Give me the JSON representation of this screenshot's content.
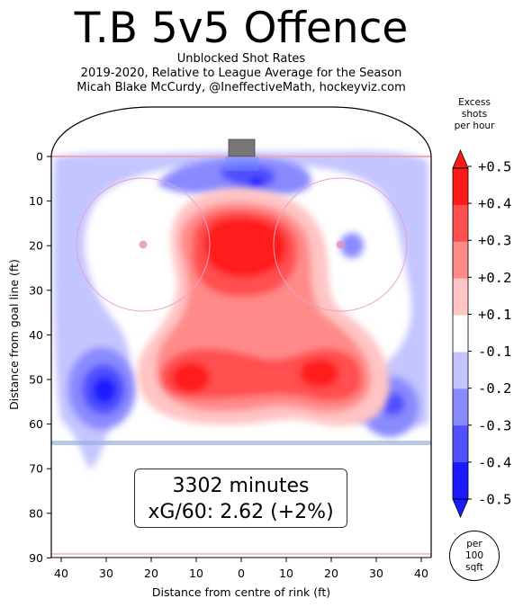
{
  "chart_data": {
    "type": "heatmap",
    "title": "T.B 5v5 Offence",
    "subtitle_lines": [
      "Unblocked Shot Rates",
      "2019-2020, Relative to League Average for the Season",
      "Micah Blake McCurdy, @IneffectiveMath, hockeyviz.com"
    ],
    "xlabel": "Distance from centre of rink (ft)",
    "ylabel": "Distance from goal line (ft)",
    "xlim": [
      42.5,
      -42.5
    ],
    "ylim": [
      90,
      -11
    ],
    "x_ticks": [
      "40",
      "30",
      "20",
      "10",
      "0",
      "10",
      "20",
      "30",
      "40"
    ],
    "x_tick_values": [
      -40,
      -30,
      -20,
      -10,
      0,
      10,
      20,
      30,
      40
    ],
    "y_ticks": [
      "0",
      "10",
      "20",
      "30",
      "40",
      "50",
      "60",
      "70",
      "80",
      "90"
    ],
    "y_tick_values": [
      0,
      10,
      20,
      30,
      40,
      50,
      60,
      70,
      80,
      90
    ],
    "colorbar": {
      "title_lines": [
        "Excess",
        "shots",
        "per hour"
      ],
      "tick_labels": [
        "+0.5",
        "+0.4",
        "+0.3",
        "+0.2",
        "+0.1",
        "-0.1",
        "-0.2",
        "-0.3",
        "-0.4",
        "-0.5"
      ],
      "levels": [
        0.5,
        0.4,
        0.3,
        0.2,
        0.1,
        -0.1,
        -0.2,
        -0.3,
        -0.4,
        -0.5
      ],
      "colors": [
        "#ff1a1a",
        "#ff5050",
        "#ff8a8a",
        "#ffc4c4",
        "#ffffff",
        "#c4c4ff",
        "#8a8aff",
        "#5050ff",
        "#1a1aff"
      ]
    },
    "annotation": {
      "minutes": "3302 minutes",
      "xg": "xG/60: 2.62 (+2%)"
    },
    "per_badge_lines": [
      "per",
      "100",
      "sqft"
    ],
    "hotspots": [
      {
        "x": 0,
        "y": 22,
        "value": 0.5
      },
      {
        "x": -12,
        "y": 49,
        "value": 0.5
      },
      {
        "x": 18,
        "y": 49,
        "value": 0.5
      },
      {
        "x": 2,
        "y": 40,
        "value": 0.3
      },
      {
        "x": -30,
        "y": 52,
        "value": -0.5
      },
      {
        "x": 33,
        "y": 55,
        "value": -0.4
      },
      {
        "x": 3,
        "y": 6,
        "value": -0.4
      },
      {
        "x": 24,
        "y": 20,
        "value": -0.2
      },
      {
        "x": -38,
        "y": 40,
        "value": -0.1
      }
    ]
  }
}
